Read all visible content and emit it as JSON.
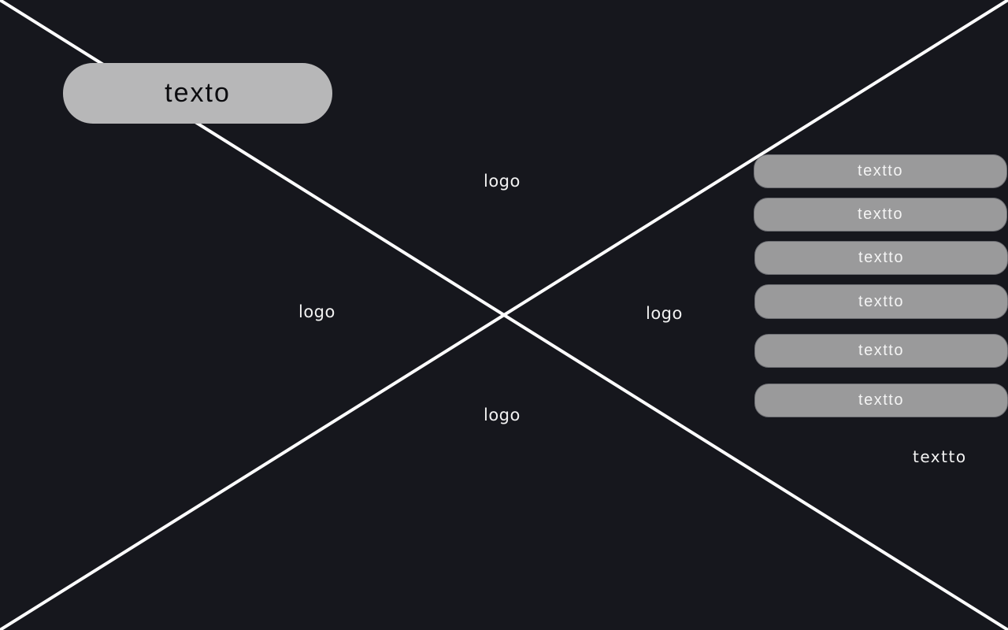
{
  "header": {
    "main_pill_label": "texto"
  },
  "logos": {
    "top": "logo",
    "left": "logo",
    "right": "logo",
    "bottom": "logo"
  },
  "sidebar": {
    "items": [
      {
        "label": "textto"
      },
      {
        "label": "textto"
      },
      {
        "label": "textto"
      },
      {
        "label": "textto"
      },
      {
        "label": "textto"
      },
      {
        "label": "textto"
      }
    ],
    "footer_text": "textto"
  },
  "colors": {
    "background": "#16171d",
    "cross_lines": "#ffffff",
    "main_pill": "#b7b7b8",
    "side_buttons": "#9a9a9b"
  }
}
